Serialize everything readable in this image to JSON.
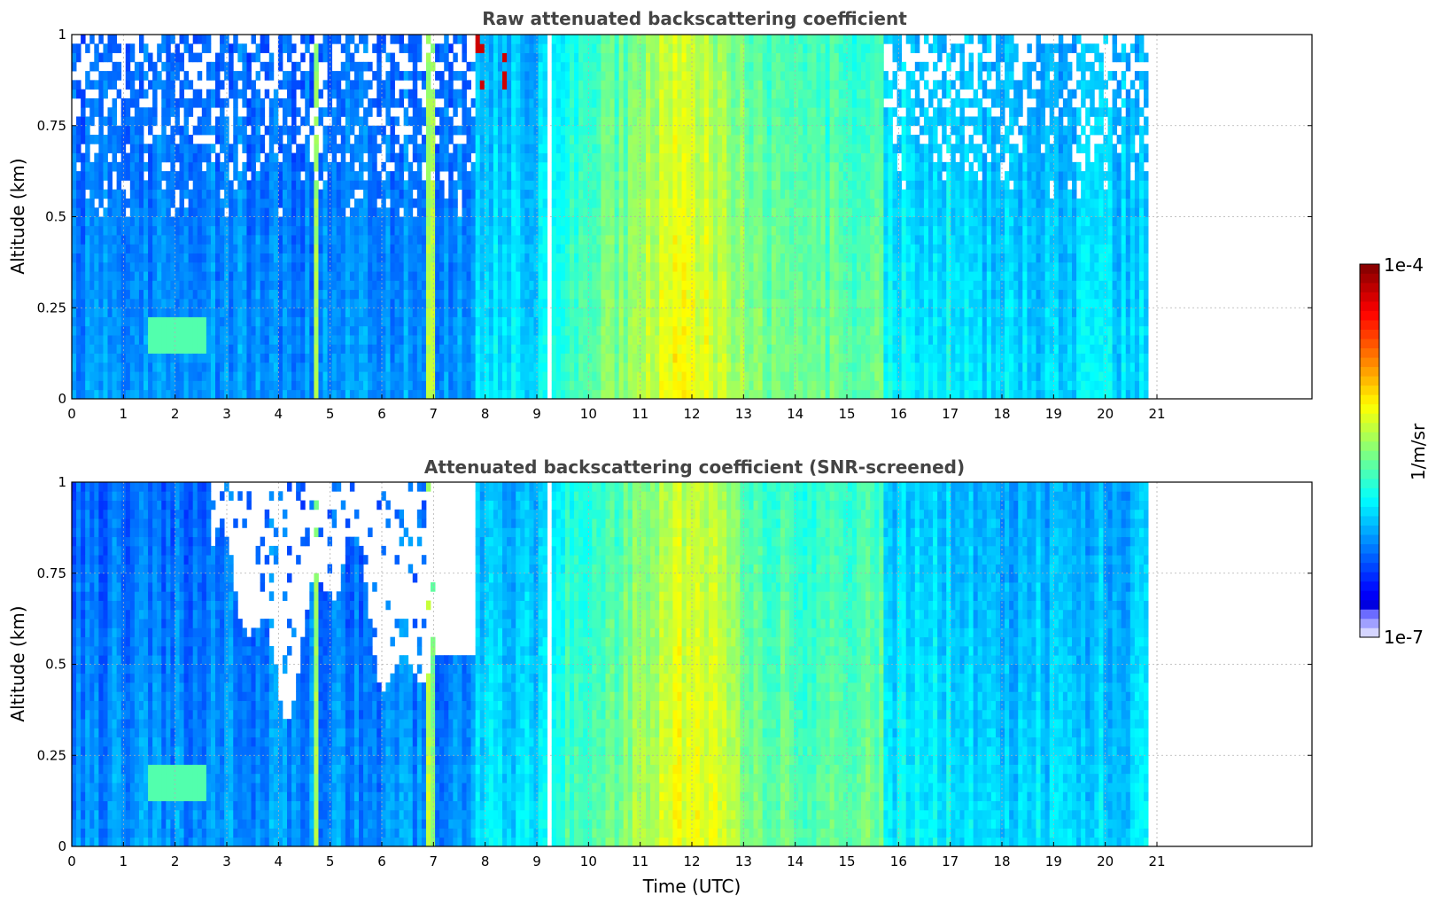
{
  "chart_data": [
    {
      "type": "heatmap",
      "title": "Raw attenuated backscattering coefficient",
      "xlabel": "",
      "ylabel": "Altitude (km)",
      "xlim": [
        0,
        24
      ],
      "ylim": [
        0,
        1
      ],
      "x_ticks": [
        "0",
        "1",
        "2",
        "3",
        "4",
        "5",
        "6",
        "7",
        "8",
        "9",
        "10",
        "11",
        "12",
        "13",
        "14",
        "15",
        "16",
        "17",
        "18",
        "19",
        "20",
        "21"
      ],
      "y_ticks": [
        "0",
        "0.25",
        "0.5",
        "0.75",
        "1"
      ],
      "grid": true,
      "data_end_x": 20.83,
      "gaps_x": [
        [
          9.18,
          9.28
        ]
      ],
      "bright_columns_x": [
        4.7,
        6.92,
        7.0
      ],
      "screened": false
    },
    {
      "type": "heatmap",
      "title": "Attenuated backscattering coefficient (SNR-screened)",
      "xlabel": "Time (UTC)",
      "ylabel": "Altitude (km)",
      "xlim": [
        0,
        24
      ],
      "ylim": [
        0,
        1
      ],
      "x_ticks": [
        "0",
        "1",
        "2",
        "3",
        "4",
        "5",
        "6",
        "7",
        "8",
        "9",
        "10",
        "11",
        "12",
        "13",
        "14",
        "15",
        "16",
        "17",
        "18",
        "19",
        "20",
        "21"
      ],
      "y_ticks": [
        "0",
        "0.25",
        "0.5",
        "0.75",
        "1"
      ],
      "grid": true,
      "data_end_x": 20.83,
      "gaps_x": [
        [
          9.18,
          9.28
        ]
      ],
      "bright_columns_x": [
        4.7,
        6.92,
        7.0
      ],
      "screened": true
    }
  ],
  "colorbar": {
    "label": "1/m/sr",
    "max_label": "1e-4",
    "min_label": "1e-7",
    "scale": "log",
    "range": [
      1e-07,
      0.0001
    ],
    "colormap": "jet"
  }
}
